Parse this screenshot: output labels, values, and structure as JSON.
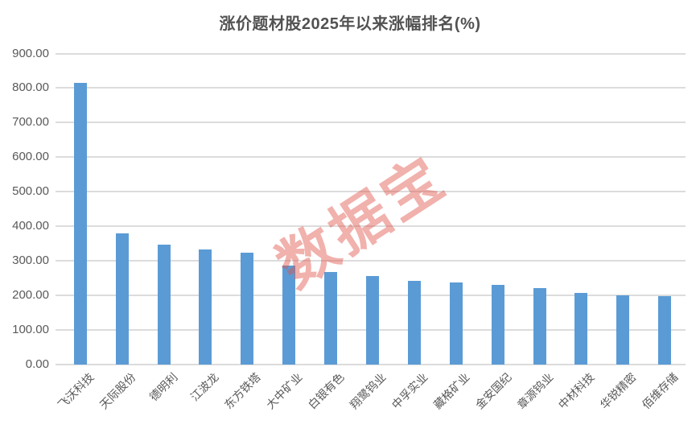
{
  "chart_data": {
    "type": "bar",
    "title": "涨价题材股2025年以来涨幅排名(%)",
    "categories": [
      "飞沃科技",
      "天际股份",
      "德明利",
      "江波龙",
      "东方铁塔",
      "大中矿业",
      "白银有色",
      "翔鹭钨业",
      "中孚实业",
      "藏格矿业",
      "金安国纪",
      "章源钨业",
      "中材科技",
      "华锐精密",
      "佰维存储"
    ],
    "values": [
      815,
      380,
      348,
      332,
      324,
      287,
      268,
      255,
      243,
      238,
      230,
      222,
      207,
      201,
      197
    ],
    "xlabel": "",
    "ylabel": "",
    "ylim": [
      0,
      900
    ],
    "ytick_step": 100,
    "yticks": [
      "900.00",
      "800.00",
      "700.00",
      "600.00",
      "500.00",
      "400.00",
      "300.00",
      "200.00",
      "100.00",
      "0.00"
    ],
    "grid": "horizontal-only",
    "legend": "none",
    "bar_color": "#5B9BD5",
    "gridline_color": "#DCDCDC",
    "title_color": "#525252",
    "tick_label_color": "#595959"
  },
  "watermark": {
    "text": "数据宝",
    "color": "rgba(224, 82, 72, 0.45)"
  }
}
